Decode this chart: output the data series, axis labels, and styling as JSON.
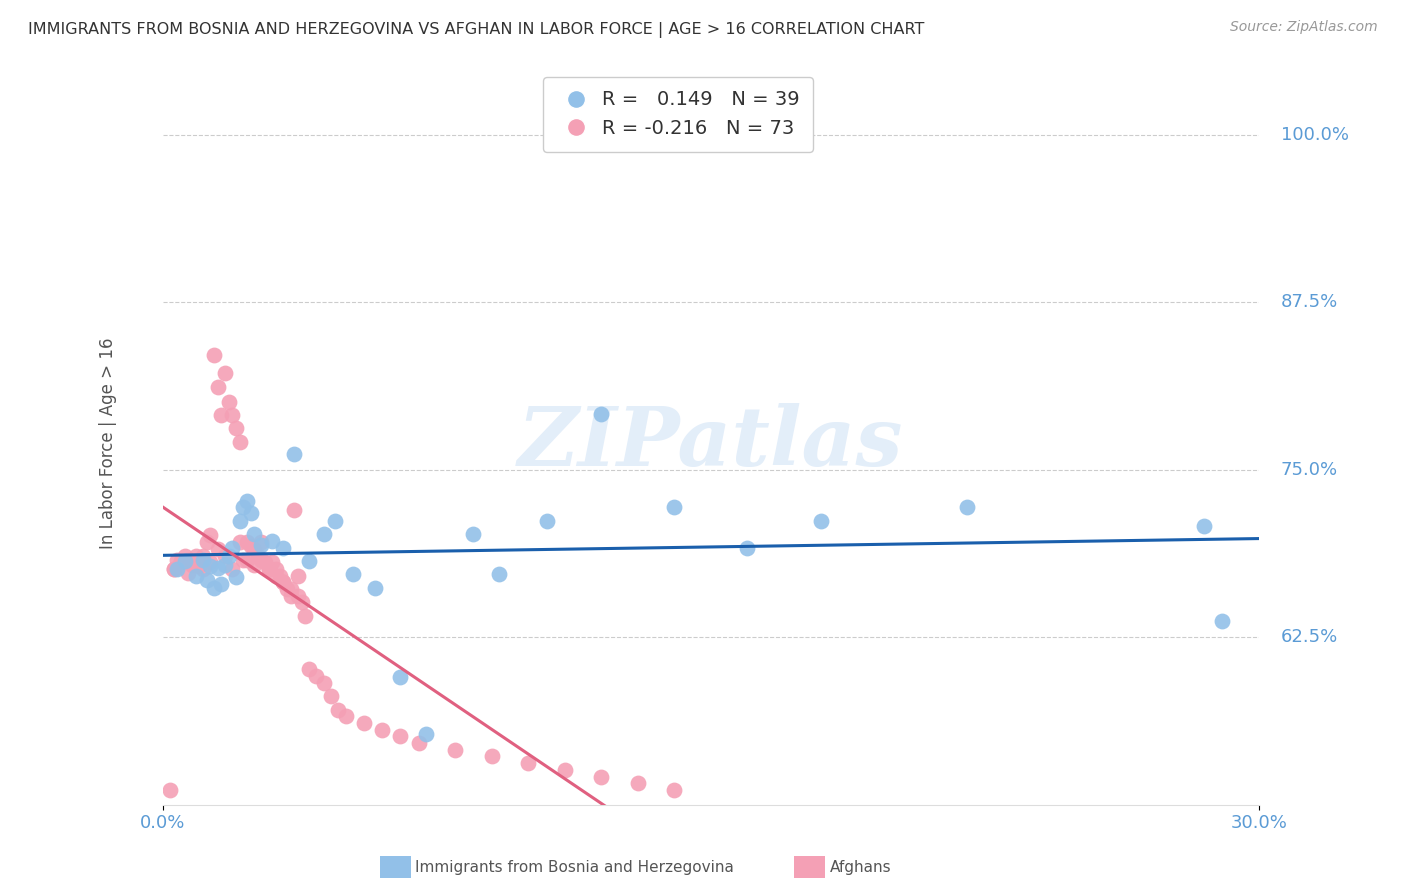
{
  "title": "IMMIGRANTS FROM BOSNIA AND HERZEGOVINA VS AFGHAN IN LABOR FORCE | AGE > 16 CORRELATION CHART",
  "source": "Source: ZipAtlas.com",
  "ylabel": "In Labor Force | Age > 16",
  "xlim": [
    0.0,
    0.3
  ],
  "ylim": [
    0.5,
    1.04
  ],
  "ytick_positions": [
    0.625,
    0.75,
    0.875,
    1.0
  ],
  "ytick_labels": [
    "62.5%",
    "75.0%",
    "87.5%",
    "100.0%"
  ],
  "xtick_positions": [
    0.0,
    0.3
  ],
  "xtick_labels": [
    "0.0%",
    "30.0%"
  ],
  "blue_R": 0.149,
  "blue_N": 39,
  "pink_R": -0.216,
  "pink_N": 73,
  "blue_color": "#92c0e8",
  "pink_color": "#f4a0b5",
  "blue_line_color": "#1a5fac",
  "pink_line_color": "#e06080",
  "watermark": "ZIPatlas",
  "blue_legend_label": "Immigrants from Bosnia and Herzegovina",
  "pink_legend_label": "Afghans",
  "blue_scatter_x": [
    0.004,
    0.006,
    0.009,
    0.011,
    0.012,
    0.013,
    0.014,
    0.015,
    0.016,
    0.017,
    0.018,
    0.019,
    0.02,
    0.021,
    0.022,
    0.023,
    0.024,
    0.025,
    0.027,
    0.03,
    0.033,
    0.036,
    0.04,
    0.044,
    0.047,
    0.052,
    0.058,
    0.065,
    0.072,
    0.085,
    0.092,
    0.105,
    0.12,
    0.14,
    0.16,
    0.18,
    0.22,
    0.285,
    0.29
  ],
  "blue_scatter_y": [
    0.676,
    0.682,
    0.671,
    0.683,
    0.668,
    0.678,
    0.662,
    0.677,
    0.665,
    0.679,
    0.686,
    0.692,
    0.67,
    0.712,
    0.722,
    0.727,
    0.718,
    0.702,
    0.694,
    0.697,
    0.692,
    0.762,
    0.682,
    0.702,
    0.712,
    0.672,
    0.662,
    0.595,
    0.553,
    0.702,
    0.672,
    0.712,
    0.792,
    0.722,
    0.692,
    0.712,
    0.722,
    0.708,
    0.637
  ],
  "pink_scatter_x": [
    0.002,
    0.003,
    0.004,
    0.005,
    0.006,
    0.007,
    0.008,
    0.009,
    0.01,
    0.011,
    0.012,
    0.013,
    0.014,
    0.015,
    0.016,
    0.017,
    0.018,
    0.019,
    0.02,
    0.021,
    0.022,
    0.023,
    0.024,
    0.025,
    0.026,
    0.027,
    0.028,
    0.029,
    0.03,
    0.031,
    0.032,
    0.033,
    0.034,
    0.035,
    0.036,
    0.037,
    0.038,
    0.039,
    0.04,
    0.042,
    0.044,
    0.046,
    0.048,
    0.05,
    0.055,
    0.06,
    0.065,
    0.07,
    0.08,
    0.09,
    0.1,
    0.11,
    0.12,
    0.13,
    0.14,
    0.003,
    0.005,
    0.007,
    0.009,
    0.011,
    0.013,
    0.015,
    0.017,
    0.019,
    0.021,
    0.023,
    0.025,
    0.027,
    0.029,
    0.031,
    0.033,
    0.035,
    0.037
  ],
  "pink_scatter_y": [
    0.511,
    0.676,
    0.683,
    0.682,
    0.686,
    0.683,
    0.679,
    0.681,
    0.678,
    0.686,
    0.696,
    0.701,
    0.836,
    0.812,
    0.791,
    0.822,
    0.801,
    0.791,
    0.781,
    0.771,
    0.683,
    0.696,
    0.693,
    0.691,
    0.686,
    0.683,
    0.681,
    0.676,
    0.681,
    0.676,
    0.671,
    0.666,
    0.661,
    0.656,
    0.72,
    0.671,
    0.651,
    0.641,
    0.601,
    0.596,
    0.591,
    0.581,
    0.571,
    0.566,
    0.561,
    0.556,
    0.551,
    0.546,
    0.541,
    0.536,
    0.531,
    0.526,
    0.521,
    0.516,
    0.511,
    0.676,
    0.681,
    0.673,
    0.686,
    0.676,
    0.681,
    0.691,
    0.686,
    0.676,
    0.696,
    0.683,
    0.679,
    0.696,
    0.676,
    0.671,
    0.666,
    0.661,
    0.656
  ]
}
